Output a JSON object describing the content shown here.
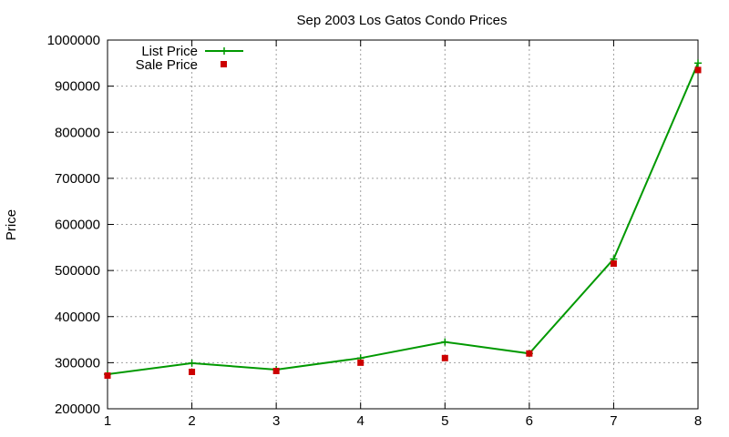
{
  "chart_data": {
    "type": "line",
    "title": "Sep 2003 Los Gatos Condo Prices",
    "xlabel": "",
    "ylabel": "Price",
    "x": [
      1,
      2,
      3,
      4,
      5,
      6,
      7,
      8
    ],
    "xlim": [
      1,
      8
    ],
    "ylim": [
      200000,
      1000000
    ],
    "yticks": [
      200000,
      300000,
      400000,
      500000,
      600000,
      700000,
      800000,
      900000,
      1000000
    ],
    "xticks": [
      1,
      2,
      3,
      4,
      5,
      6,
      7,
      8
    ],
    "grid": true,
    "legend_position": "top-left",
    "series": [
      {
        "name": "List Price",
        "style": "line+cross",
        "color": "#009900",
        "values": [
          275000,
          299000,
          285000,
          310000,
          345000,
          320000,
          525000,
          950000
        ]
      },
      {
        "name": "Sale Price",
        "style": "square-points",
        "color": "#cc0000",
        "values": [
          272000,
          280000,
          282000,
          300000,
          310000,
          320000,
          515000,
          935000
        ]
      }
    ]
  }
}
